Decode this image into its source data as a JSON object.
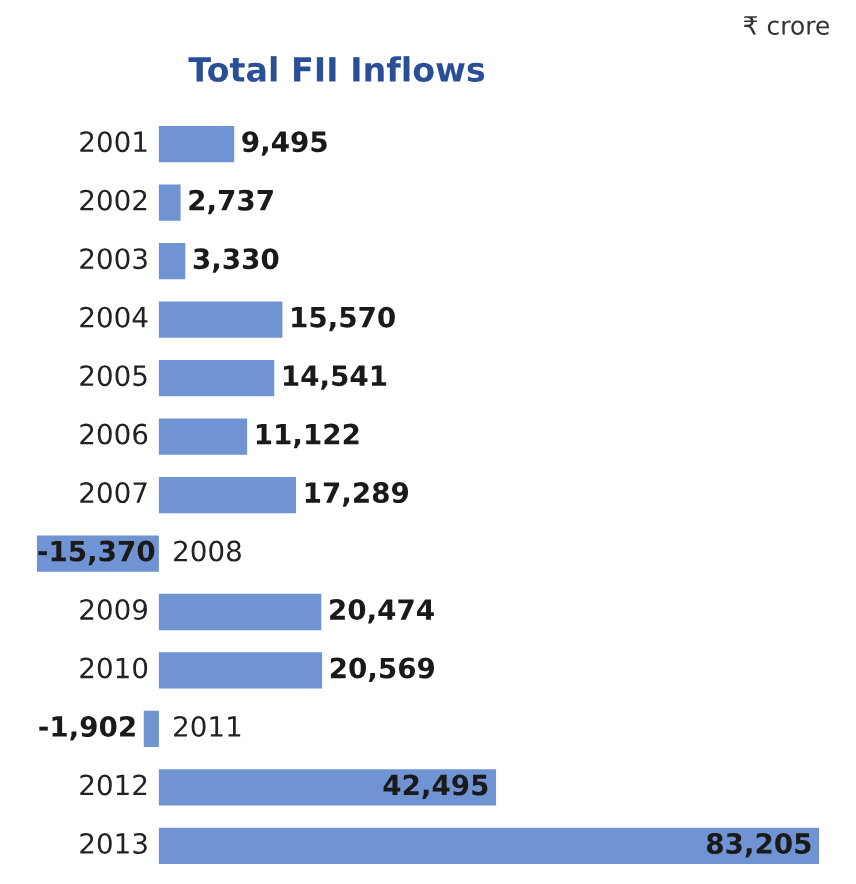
{
  "chart_data": {
    "type": "bar",
    "orientation": "horizontal",
    "title": "Total FII Inflows",
    "annotations": [
      "₹ crore"
    ],
    "categories": [
      "2001",
      "2002",
      "2003",
      "2004",
      "2005",
      "2006",
      "2007",
      "2008",
      "2009",
      "2010",
      "2011",
      "2012",
      "2013"
    ],
    "values": [
      9495,
      2737,
      3330,
      15570,
      14541,
      11122,
      17289,
      -15370,
      20474,
      20569,
      -1902,
      42495,
      83205
    ],
    "value_labels": [
      "9,495",
      "2,737",
      "3,330",
      "15,570",
      "14,541",
      "11,122",
      "17,289",
      "-15,370",
      "20,474",
      "20,569",
      "-1,902",
      "42,495",
      "83,205"
    ],
    "color": "#6f93d3"
  }
}
